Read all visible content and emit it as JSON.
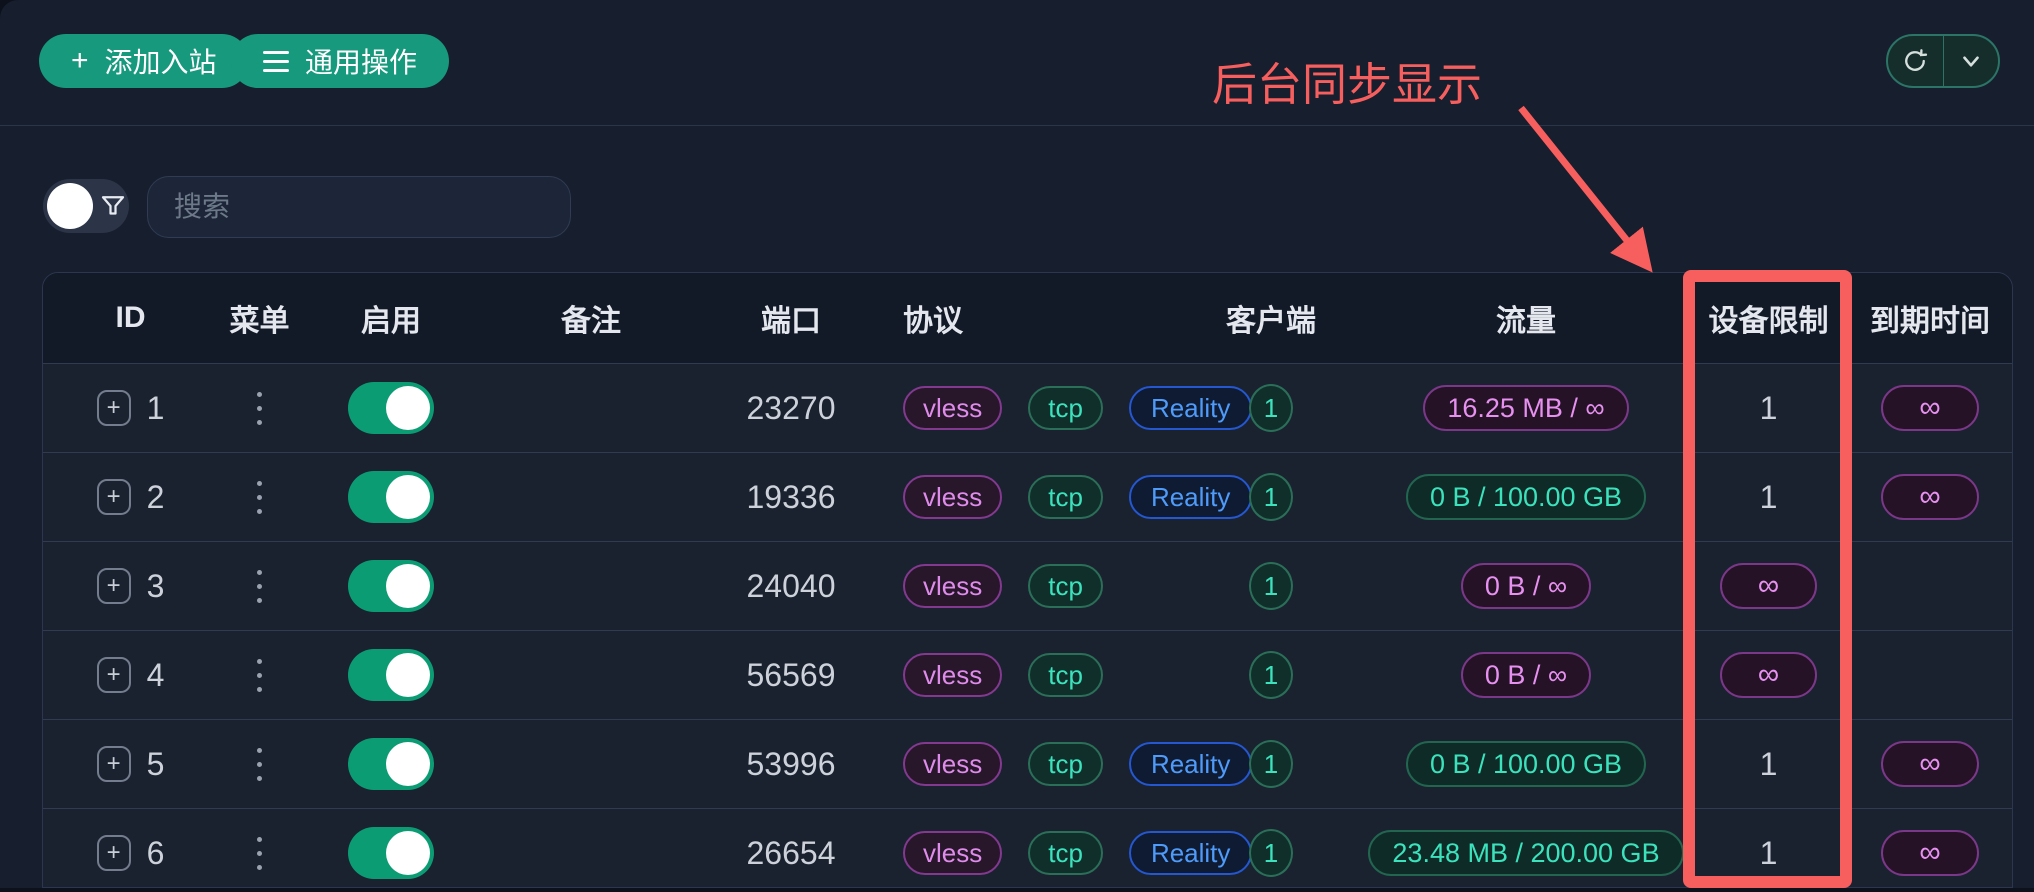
{
  "toolbar": {
    "add_inbound_label": "添加入站",
    "general_actions_label": "通用操作"
  },
  "annotation": {
    "text": "后台同步显示",
    "color": "#f75f5e"
  },
  "filter": {
    "toggle_state": "off",
    "search_placeholder": "搜索"
  },
  "colors": {
    "button_green": "#16997c",
    "toggle_green": "#0c9c74",
    "annotation_red": "#f75f5e",
    "tag_vless": "#de8bea",
    "tag_tcp": "#3be3bd",
    "tag_reality": "#4f9bfa",
    "pill_purple": "#e690ef",
    "pill_green": "#3be3bd"
  },
  "table": {
    "headers": [
      {
        "key": "id",
        "label": "ID"
      },
      {
        "key": "menu",
        "label": "菜单"
      },
      {
        "key": "enable",
        "label": "启用"
      },
      {
        "key": "remark",
        "label": "备注"
      },
      {
        "key": "port",
        "label": "端口"
      },
      {
        "key": "protocol",
        "label": "协议"
      },
      {
        "key": "client",
        "label": "客户端"
      },
      {
        "key": "traffic",
        "label": "流量"
      },
      {
        "key": "device_limit",
        "label": "设备限制"
      },
      {
        "key": "expiry",
        "label": "到期时间"
      }
    ],
    "rows": [
      {
        "id": "1",
        "enabled": true,
        "remark": "",
        "port": "23270",
        "protocols": [
          "vless",
          "tcp",
          "Reality"
        ],
        "clients": "1",
        "traffic": {
          "text": "16.25 MB / ∞",
          "style": "purple"
        },
        "device_limit": {
          "type": "text",
          "value": "1"
        },
        "expiry": {
          "type": "badge",
          "value": "∞"
        }
      },
      {
        "id": "2",
        "enabled": true,
        "remark": "",
        "port": "19336",
        "protocols": [
          "vless",
          "tcp",
          "Reality"
        ],
        "clients": "1",
        "traffic": {
          "text": "0 B / 100.00 GB",
          "style": "green"
        },
        "device_limit": {
          "type": "text",
          "value": "1"
        },
        "expiry": {
          "type": "badge",
          "value": "∞"
        }
      },
      {
        "id": "3",
        "enabled": true,
        "remark": "",
        "port": "24040",
        "protocols": [
          "vless",
          "tcp"
        ],
        "clients": "1",
        "traffic": {
          "text": "0 B / ∞",
          "style": "purple"
        },
        "device_limit": {
          "type": "badge",
          "value": "∞"
        },
        "expiry": {
          "type": "none",
          "value": ""
        }
      },
      {
        "id": "4",
        "enabled": true,
        "remark": "",
        "port": "56569",
        "protocols": [
          "vless",
          "tcp"
        ],
        "clients": "1",
        "traffic": {
          "text": "0 B / ∞",
          "style": "purple"
        },
        "device_limit": {
          "type": "badge",
          "value": "∞"
        },
        "expiry": {
          "type": "none",
          "value": ""
        }
      },
      {
        "id": "5",
        "enabled": true,
        "remark": "",
        "port": "53996",
        "protocols": [
          "vless",
          "tcp",
          "Reality"
        ],
        "clients": "1",
        "traffic": {
          "text": "0 B / 100.00 GB",
          "style": "green"
        },
        "device_limit": {
          "type": "text",
          "value": "1"
        },
        "expiry": {
          "type": "badge",
          "value": "∞"
        }
      },
      {
        "id": "6",
        "enabled": true,
        "remark": "",
        "port": "26654",
        "protocols": [
          "vless",
          "tcp",
          "Reality"
        ],
        "clients": "1",
        "traffic": {
          "text": "23.48 MB / 200.00 GB",
          "style": "green"
        },
        "device_limit": {
          "type": "text",
          "value": "1"
        },
        "expiry": {
          "type": "badge",
          "value": "∞"
        }
      }
    ]
  }
}
